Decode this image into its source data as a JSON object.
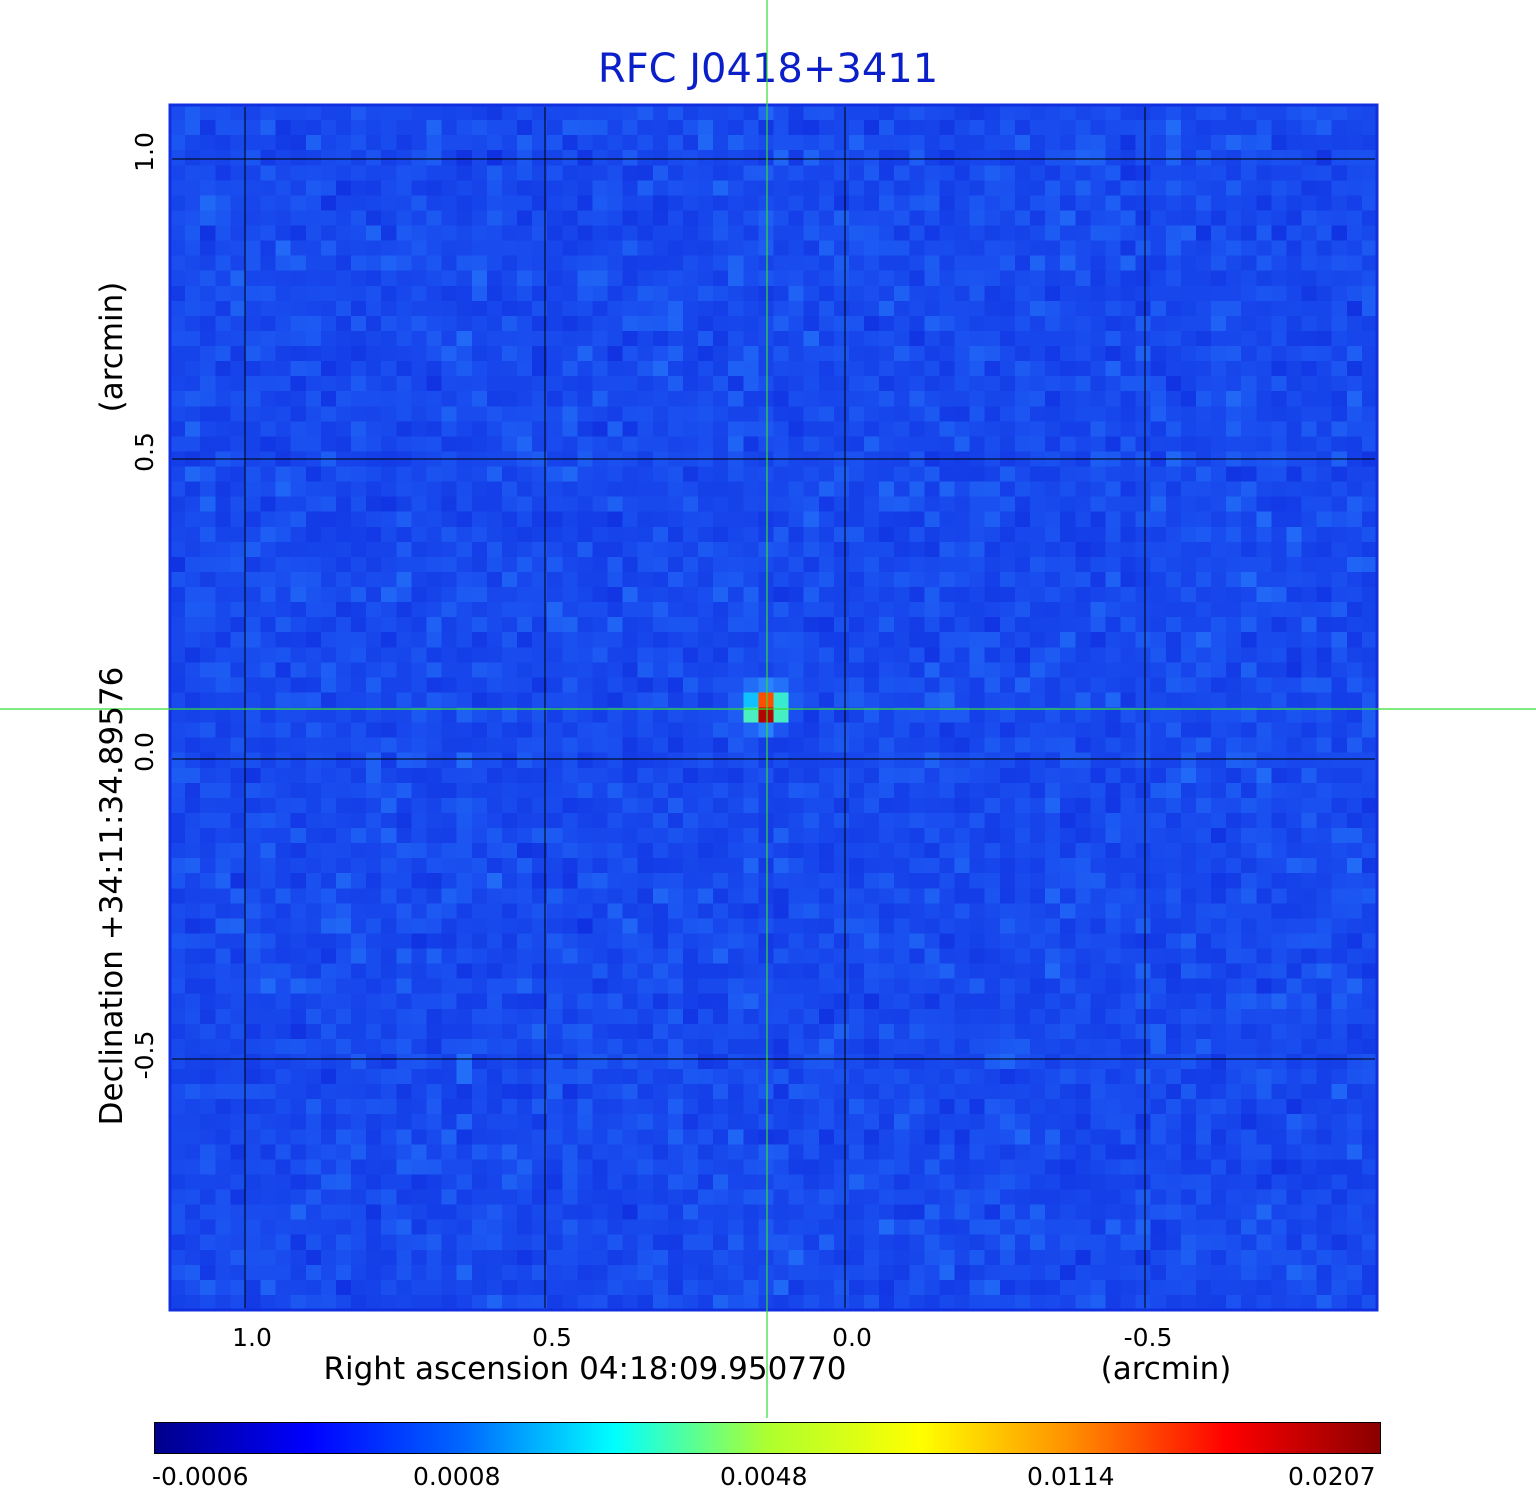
{
  "title": "RFC J0418+3411",
  "image": {
    "source_arcmin": {
      "ra_offset": 0.13,
      "dec_offset": 0.085
    },
    "colormap": [
      "#00008b",
      "#0000ff",
      "#00bfff",
      "#00ffff",
      "#7fffd4",
      "#ffff00",
      "#ff8c00",
      "#ff0000",
      "#8b0000"
    ],
    "background_color": "#1a4ff0"
  },
  "x_axis": {
    "title": "Right ascension  04:18:09.950770",
    "unit": "(arcmin)",
    "ticks": [
      {
        "value": 1.0,
        "label": "1.0"
      },
      {
        "value": 0.5,
        "label": "0.5"
      },
      {
        "value": 0.0,
        "label": "0.0"
      },
      {
        "value": -0.5,
        "label": "-0.5"
      }
    ]
  },
  "y_axis": {
    "title": "Declination  +34:11:34.89576",
    "unit": "(arcmin)",
    "ticks": [
      {
        "value": 1.0,
        "label": "1.0"
      },
      {
        "value": 0.5,
        "label": "0.5"
      },
      {
        "value": 0.0,
        "label": "0.0"
      },
      {
        "value": -0.5,
        "label": "-0.5"
      }
    ]
  },
  "crosshair_color": "#33dd33",
  "grid_color": "#000000",
  "colorbar": {
    "labels": [
      "-0.0006",
      "0.0008",
      "0.0048",
      "0.0114",
      "0.0207"
    ],
    "colors": [
      "#00008b",
      "#0000ff",
      "#0066ff",
      "#00ffff",
      "#adff2f",
      "#ffff00",
      "#ff8c00",
      "#ff0000",
      "#8b0000"
    ]
  }
}
